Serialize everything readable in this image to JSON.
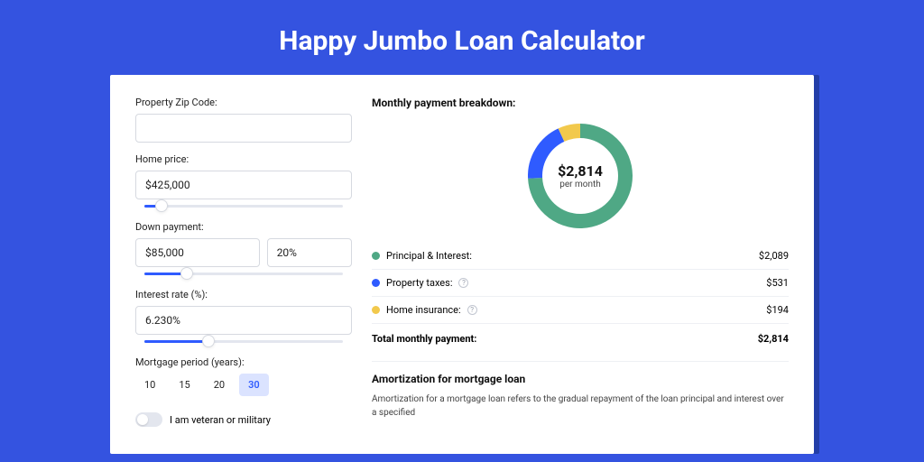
{
  "page": {
    "title": "Happy Jumbo Loan Calculator",
    "bg_color": "#3453e0",
    "card_shadow_color": "#233ea8"
  },
  "form": {
    "zip": {
      "label": "Property Zip Code:",
      "value": ""
    },
    "home_price": {
      "label": "Home price:",
      "value": "$425,000",
      "slider_pct": 8
    },
    "down_payment": {
      "label": "Down payment:",
      "value": "$85,000",
      "pct": "20%",
      "slider_pct": 20
    },
    "interest": {
      "label": "Interest rate (%):",
      "value": "6.230%",
      "slider_pct": 30
    },
    "period": {
      "label": "Mortgage period (years):",
      "options": [
        "10",
        "15",
        "20",
        "30"
      ],
      "selected": "30"
    },
    "veteran": {
      "label": "I am veteran or military",
      "value": false
    }
  },
  "breakdown": {
    "title": "Monthly payment breakdown:",
    "center_value": "$2,814",
    "center_sub": "per month",
    "donut": {
      "series": [
        {
          "key": "principal_interest",
          "value": 2089,
          "color": "#4fa885"
        },
        {
          "key": "property_taxes",
          "value": 531,
          "color": "#2f5bff"
        },
        {
          "key": "home_insurance",
          "value": 194,
          "color": "#f2c94c"
        }
      ],
      "stroke_width": 16,
      "radius": 50
    },
    "rows": [
      {
        "label": "Principal & Interest:",
        "value": "$2,089",
        "color": "#4fa885",
        "info": false
      },
      {
        "label": "Property taxes:",
        "value": "$531",
        "color": "#2f5bff",
        "info": true
      },
      {
        "label": "Home insurance:",
        "value": "$194",
        "color": "#f2c94c",
        "info": true
      }
    ],
    "total": {
      "label": "Total monthly payment:",
      "value": "$2,814"
    }
  },
  "amortization": {
    "title": "Amortization for mortgage loan",
    "text": "Amortization for a mortgage loan refers to the gradual repayment of the loan principal and interest over a specified"
  }
}
